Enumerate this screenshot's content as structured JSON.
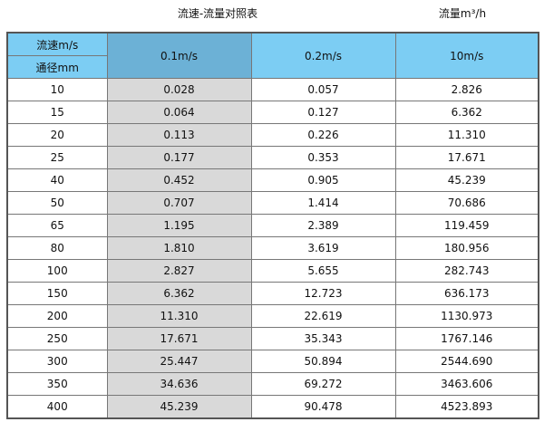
{
  "title": "流速-流量对照表",
  "unit_label": "流量m³/h",
  "colors": {
    "header": "#7ccdf3",
    "header_highlight": "#6cb1d6",
    "highlight_column": "#d9d9d9"
  },
  "header": {
    "velocity_label": "流速m/s",
    "diameter_label": "通径mm",
    "columns": [
      "0.1m/s",
      "0.2m/s",
      "10m/s"
    ]
  },
  "rows": [
    [
      "10",
      "0.028",
      "0.057",
      "2.826"
    ],
    [
      "15",
      "0.064",
      "0.127",
      "6.362"
    ],
    [
      "20",
      "0.113",
      "0.226",
      "11.310"
    ],
    [
      "25",
      "0.177",
      "0.353",
      "17.671"
    ],
    [
      "40",
      "0.452",
      "0.905",
      "45.239"
    ],
    [
      "50",
      "0.707",
      "1.414",
      "70.686"
    ],
    [
      "65",
      "1.195",
      "2.389",
      "119.459"
    ],
    [
      "80",
      "1.810",
      "3.619",
      "180.956"
    ],
    [
      "100",
      "2.827",
      "5.655",
      "282.743"
    ],
    [
      "150",
      "6.362",
      "12.723",
      "636.173"
    ],
    [
      "200",
      "11.310",
      "22.619",
      "1130.973"
    ],
    [
      "250",
      "17.671",
      "35.343",
      "1767.146"
    ],
    [
      "300",
      "25.447",
      "50.894",
      "2544.690"
    ],
    [
      "350",
      "34.636",
      "69.272",
      "3463.606"
    ],
    [
      "400",
      "45.239",
      "90.478",
      "4523.893"
    ]
  ]
}
